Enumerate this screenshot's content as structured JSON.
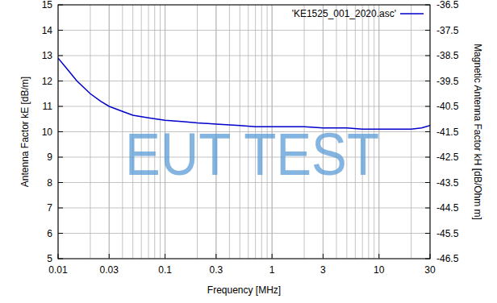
{
  "chart_data": {
    "type": "line",
    "xlabel": "Frequency [MHz]",
    "ylabel": "Antenna Factor kE [dB/m]",
    "y2label": "Magnetic Antenna Factor kH [dB/Ohm m]",
    "log": "x",
    "grid": true,
    "legend": "top-right",
    "annotations": [
      {
        "text": "EUT TEST"
      }
    ],
    "x": [
      0.01,
      0.012,
      0.015,
      0.02,
      0.025,
      0.03,
      0.04,
      0.05,
      0.07,
      0.1,
      0.15,
      0.2,
      0.3,
      0.5,
      0.7,
      1,
      2,
      3,
      5,
      7,
      10,
      15,
      20,
      25,
      30
    ],
    "series": [
      {
        "name": "'KE1525_001_2020.asc'",
        "color": "#0000cc",
        "values": [
          12.9,
          12.5,
          12.0,
          11.5,
          11.2,
          11.0,
          10.8,
          10.65,
          10.55,
          10.45,
          10.4,
          10.35,
          10.3,
          10.25,
          10.2,
          10.2,
          10.2,
          10.15,
          10.15,
          10.1,
          10.1,
          10.1,
          10.1,
          10.15,
          10.25
        ]
      }
    ],
    "xlim": [
      0.01,
      30
    ],
    "xticks": [
      0.01,
      0.03,
      0.1,
      0.3,
      1,
      3,
      10,
      30
    ],
    "ylim": [
      5,
      15
    ],
    "yticks": [
      5,
      6,
      7,
      8,
      9,
      10,
      11,
      12,
      13,
      14,
      15
    ],
    "y2lim": [
      -46.5,
      -36.5
    ],
    "y2ticks": [
      -46.5,
      -45.5,
      -44.5,
      -43.5,
      -42.5,
      -41.5,
      -40.5,
      -39.5,
      -38.5,
      -37.5,
      -36.5
    ]
  }
}
